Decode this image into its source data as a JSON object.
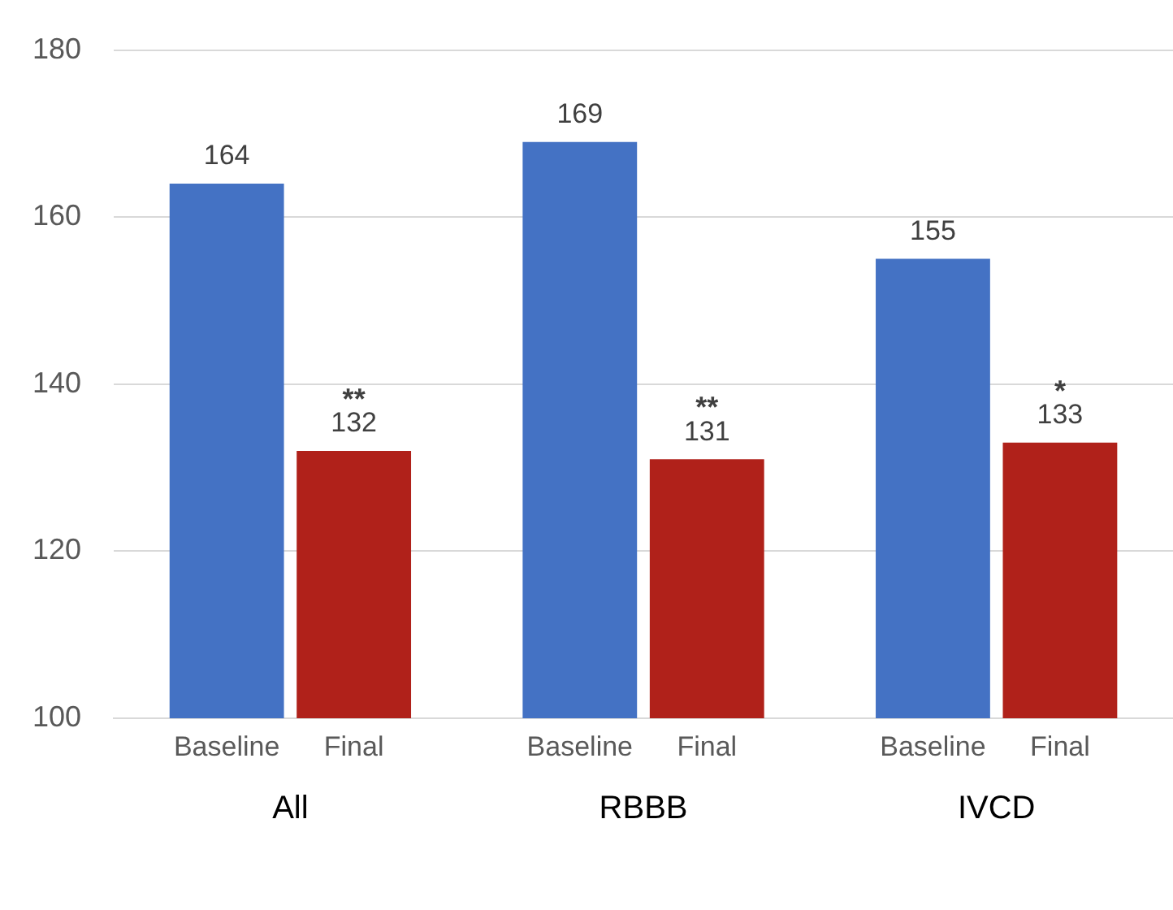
{
  "chart_data": {
    "type": "bar",
    "categories": [
      "All",
      "RBBB",
      "IVCD"
    ],
    "series": [
      {
        "name": "Baseline",
        "color": "#4472c4",
        "values": [
          164,
          169,
          155
        ]
      },
      {
        "name": "Final",
        "color": "#b0211a",
        "values": [
          132,
          131,
          133
        ]
      }
    ],
    "ylim": [
      100,
      180
    ],
    "yticks": [
      100,
      120,
      140,
      160,
      180
    ],
    "grid": "y",
    "legend": false,
    "data_labels": true,
    "annotations": [
      "**",
      "**",
      "*"
    ]
  }
}
